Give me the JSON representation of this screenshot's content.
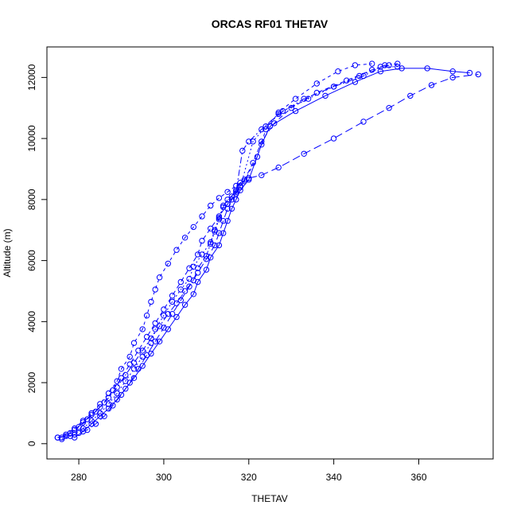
{
  "chart_data": {
    "type": "scatter",
    "title": "ORCAS RF01 THETAV",
    "xlabel": "THETAV",
    "ylabel": "Altitude (m)",
    "xlim": [
      272.5,
      377.5
    ],
    "ylim": [
      -500,
      13000
    ],
    "xticks": [
      "280",
      "300",
      "320",
      "340",
      "360"
    ],
    "yticks": [
      "0",
      "2000",
      "4000",
      "6000",
      "8000",
      "10000",
      "12000"
    ],
    "xtick_values": [
      280,
      300,
      320,
      340,
      360
    ],
    "ytick_values": [
      0,
      2000,
      4000,
      6000,
      8000,
      10000,
      12000
    ],
    "color": "#0000ff",
    "marker": "open-circle",
    "connected": true,
    "grid": false,
    "legend": "none",
    "series": [
      {
        "dash": "10,5",
        "points": [
          [
            275,
            200
          ],
          [
            278,
            250
          ],
          [
            280,
            350
          ],
          [
            282,
            450
          ],
          [
            284,
            650
          ],
          [
            286,
            900
          ],
          [
            288,
            1250
          ],
          [
            290,
            1600
          ],
          [
            292,
            2000
          ],
          [
            294,
            2450
          ],
          [
            296,
            2900
          ],
          [
            298,
            3350
          ],
          [
            300,
            3800
          ],
          [
            302,
            4250
          ],
          [
            304,
            4700
          ],
          [
            306,
            5150
          ],
          [
            308,
            5600
          ],
          [
            310,
            6050
          ],
          [
            312,
            6500
          ],
          [
            313,
            6900
          ],
          [
            314,
            7300
          ],
          [
            315,
            7700
          ],
          [
            316,
            8000
          ],
          [
            317,
            8300
          ],
          [
            318,
            8550
          ],
          [
            320,
            8700
          ],
          [
            323,
            8800
          ],
          [
            327,
            9050
          ],
          [
            333,
            9500
          ],
          [
            340,
            10000
          ],
          [
            347,
            10550
          ],
          [
            353,
            11000
          ],
          [
            358,
            11400
          ],
          [
            363,
            11750
          ],
          [
            368,
            12000
          ],
          [
            374,
            12100
          ]
        ]
      },
      {
        "dash": "6,4",
        "points": [
          [
            276,
            200
          ],
          [
            278,
            350
          ],
          [
            280,
            550
          ],
          [
            282,
            800
          ],
          [
            284,
            1050
          ],
          [
            286,
            1350
          ],
          [
            288,
            1750
          ],
          [
            290,
            2150
          ],
          [
            292,
            2600
          ],
          [
            294,
            3050
          ],
          [
            296,
            3500
          ],
          [
            298,
            3950
          ],
          [
            300,
            4400
          ],
          [
            302,
            4850
          ],
          [
            304,
            5300
          ],
          [
            306,
            5750
          ],
          [
            308,
            6200
          ],
          [
            309,
            6650
          ],
          [
            311,
            7050
          ],
          [
            313,
            7450
          ],
          [
            315,
            7850
          ],
          [
            317,
            8200
          ],
          [
            318,
            8450
          ],
          [
            319,
            8650
          ],
          [
            321,
            9200
          ],
          [
            323,
            9900
          ],
          [
            326,
            10500
          ],
          [
            330,
            11000
          ],
          [
            336,
            11500
          ],
          [
            343,
            11900
          ],
          [
            349,
            12250
          ],
          [
            353,
            12400
          ]
        ]
      },
      {
        "dash": "4,4",
        "points": [
          [
            275,
            200
          ],
          [
            277,
            300
          ],
          [
            279,
            500
          ],
          [
            281,
            750
          ],
          [
            283,
            1000
          ],
          [
            285,
            1300
          ],
          [
            287,
            1650
          ],
          [
            289,
            2050
          ],
          [
            290,
            2450
          ],
          [
            292,
            2850
          ],
          [
            293,
            3300
          ],
          [
            295,
            3750
          ],
          [
            296,
            4200
          ],
          [
            297,
            4650
          ],
          [
            298,
            5050
          ],
          [
            299,
            5450
          ],
          [
            301,
            5900
          ],
          [
            303,
            6350
          ],
          [
            305,
            6750
          ],
          [
            307,
            7100
          ],
          [
            309,
            7450
          ],
          [
            311,
            7800
          ],
          [
            313,
            8050
          ],
          [
            315,
            8250
          ],
          [
            317,
            8450
          ],
          [
            319,
            8600
          ],
          [
            322,
            9400
          ],
          [
            324,
            10300
          ],
          [
            327,
            10850
          ],
          [
            331,
            11300
          ],
          [
            336,
            11800
          ],
          [
            341,
            12200
          ],
          [
            345,
            12400
          ],
          [
            349,
            12450
          ]
        ]
      },
      {
        "dash": "2,3",
        "points": [
          [
            276,
            150
          ],
          [
            279,
            300
          ],
          [
            281,
            500
          ],
          [
            283,
            750
          ],
          [
            285,
            1000
          ],
          [
            287,
            1300
          ],
          [
            289,
            1650
          ],
          [
            291,
            2050
          ],
          [
            293,
            2450
          ],
          [
            295,
            2850
          ],
          [
            297,
            3300
          ],
          [
            298,
            3750
          ],
          [
            300,
            4200
          ],
          [
            302,
            4650
          ],
          [
            304,
            5050
          ],
          [
            306,
            5400
          ],
          [
            307,
            5800
          ],
          [
            309,
            6200
          ],
          [
            311,
            6600
          ],
          [
            312,
            7000
          ],
          [
            313,
            7400
          ],
          [
            314,
            7800
          ],
          [
            316,
            8100
          ],
          [
            318,
            8400
          ],
          [
            321,
            9900
          ],
          [
            324,
            10400
          ],
          [
            328,
            10900
          ],
          [
            334,
            11300
          ],
          [
            340,
            11700
          ],
          [
            346,
            12050
          ],
          [
            351,
            12350
          ],
          [
            355,
            12350
          ]
        ]
      },
      {
        "dash": "8,3,2,3",
        "points": [
          [
            277,
            250
          ],
          [
            279,
            450
          ],
          [
            281,
            700
          ],
          [
            283,
            950
          ],
          [
            285,
            1200
          ],
          [
            287,
            1500
          ],
          [
            289,
            1850
          ],
          [
            291,
            2250
          ],
          [
            293,
            2650
          ],
          [
            295,
            3050
          ],
          [
            297,
            3450
          ],
          [
            299,
            3850
          ],
          [
            301,
            4250
          ],
          [
            303,
            4600
          ],
          [
            305,
            5000
          ],
          [
            307,
            5350
          ],
          [
            308,
            5750
          ],
          [
            310,
            6150
          ],
          [
            311,
            6550
          ],
          [
            312,
            6950
          ],
          [
            313,
            7350
          ],
          [
            314,
            7750
          ],
          [
            315,
            8000
          ],
          [
            317,
            8250
          ],
          [
            318.5,
            9600
          ],
          [
            320,
            9900
          ],
          [
            323,
            10300
          ],
          [
            327,
            10800
          ],
          [
            333,
            11300
          ],
          [
            340,
            11700
          ],
          [
            347,
            12050
          ],
          [
            352,
            12400
          ],
          [
            355,
            12450
          ]
        ]
      },
      {
        "dash": "1,0",
        "points": [
          [
            279,
            200
          ],
          [
            281,
            400
          ],
          [
            283,
            650
          ],
          [
            285,
            900
          ],
          [
            287,
            1150
          ],
          [
            289,
            1450
          ],
          [
            291,
            1800
          ],
          [
            293,
            2150
          ],
          [
            295,
            2550
          ],
          [
            297,
            2950
          ],
          [
            299,
            3350
          ],
          [
            301,
            3750
          ],
          [
            303,
            4150
          ],
          [
            305,
            4550
          ],
          [
            307,
            4900
          ],
          [
            308,
            5300
          ],
          [
            310,
            5700
          ],
          [
            311,
            6100
          ],
          [
            313,
            6500
          ],
          [
            314,
            6900
          ],
          [
            315,
            7300
          ],
          [
            316,
            7700
          ],
          [
            317,
            8000
          ],
          [
            318,
            8300
          ],
          [
            320,
            8650
          ],
          [
            323,
            9800
          ],
          [
            325,
            10400
          ],
          [
            331,
            10900
          ],
          [
            338,
            11400
          ],
          [
            345,
            11850
          ],
          [
            351,
            12200
          ],
          [
            356,
            12300
          ],
          [
            362,
            12300
          ],
          [
            368,
            12200
          ],
          [
            372,
            12150
          ]
        ]
      }
    ]
  }
}
